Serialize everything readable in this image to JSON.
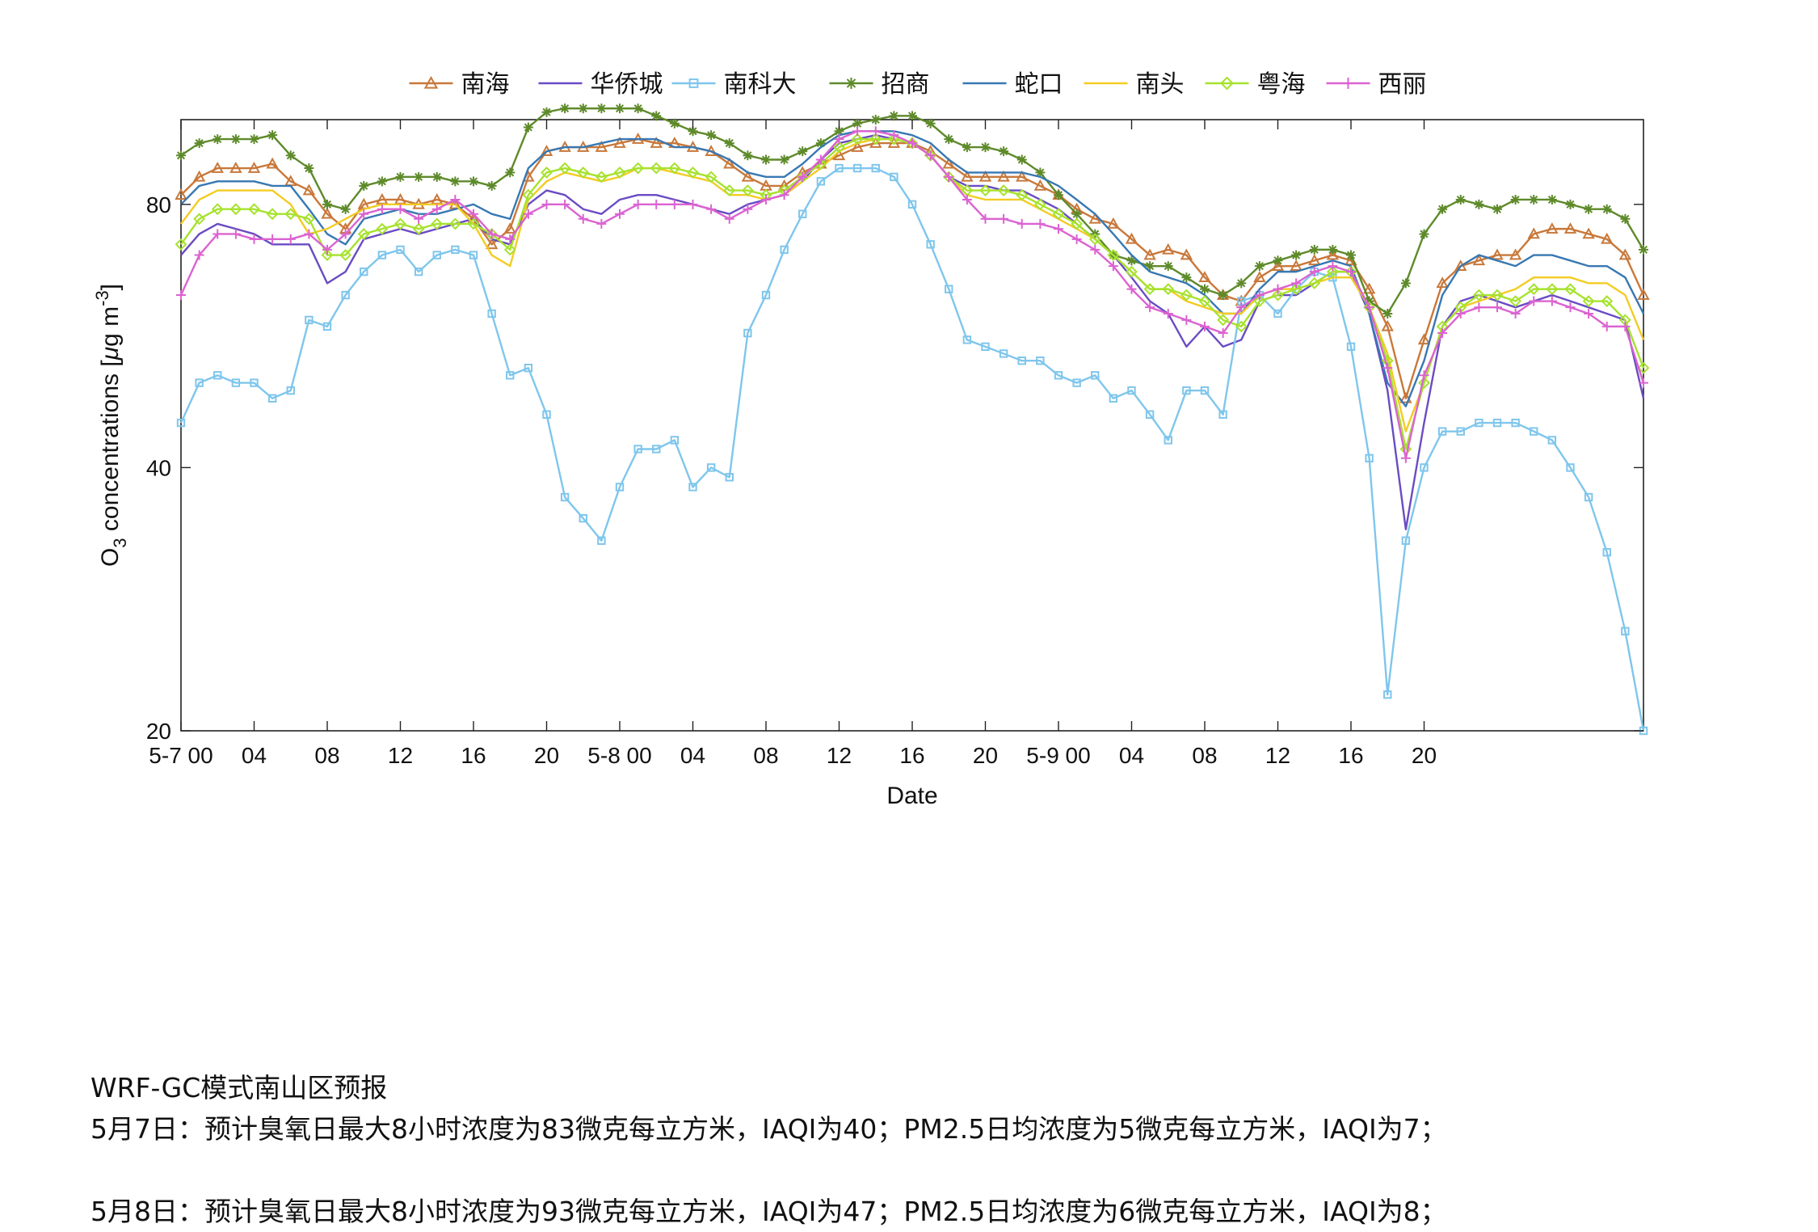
{
  "chart_data": {
    "type": "line",
    "xlabel": "Date",
    "ylabel": "O3 concentrations [μg m-3]",
    "ylabel_parts": {
      "o": "O",
      "sub": "3",
      "mid": " concentrations [",
      "mu": "μ",
      "g": "g m",
      "sup": "-3",
      "end": "]"
    },
    "y_scale": "log",
    "ylim": [
      20,
      100
    ],
    "yticks": [
      "20",
      "40",
      "80"
    ],
    "ytick_values": [
      20,
      40,
      80
    ],
    "xlim": [
      0,
      80
    ],
    "xticks": [
      {
        "x": 0,
        "label": "5-7 00"
      },
      {
        "x": 4,
        "label": "04"
      },
      {
        "x": 8,
        "label": "08"
      },
      {
        "x": 12,
        "label": "12"
      },
      {
        "x": 16,
        "label": "16"
      },
      {
        "x": 20,
        "label": "20"
      },
      {
        "x": 24,
        "label": "5-8 00"
      },
      {
        "x": 28,
        "label": "04"
      },
      {
        "x": 32,
        "label": "08"
      },
      {
        "x": 36,
        "label": "12"
      },
      {
        "x": 40,
        "label": "16"
      },
      {
        "x": 44,
        "label": "20"
      },
      {
        "x": 48,
        "label": "5-9 00"
      },
      {
        "x": 52,
        "label": "04"
      },
      {
        "x": 56,
        "label": "08"
      },
      {
        "x": 60,
        "label": "12"
      },
      {
        "x": 64,
        "label": "16"
      },
      {
        "x": 68,
        "label": "20"
      }
    ],
    "legend_position": "top-center",
    "grid": false,
    "series": [
      {
        "name": "南海",
        "color": "#c8783a",
        "marker": "triangle",
        "values": [
          82,
          86,
          88,
          88,
          88,
          89,
          85,
          83,
          78,
          75,
          80,
          81,
          81,
          80,
          81,
          80,
          77,
          72,
          75,
          86,
          92,
          93,
          93,
          93,
          94,
          95,
          94,
          94,
          93,
          92,
          89,
          86,
          84,
          84,
          87,
          89,
          91,
          93,
          94,
          94,
          94,
          92,
          89,
          86,
          86,
          86,
          86,
          84,
          82,
          79,
          77,
          76,
          73,
          70,
          71,
          70,
          66,
          63,
          62,
          66,
          68,
          68,
          69,
          70,
          69,
          64,
          58,
          48,
          56,
          65,
          68,
          69,
          70,
          70,
          74,
          75,
          75,
          74,
          73,
          70,
          63
        ]
      },
      {
        "name": "华侨城",
        "color": "#6a4cc2",
        "marker": "none",
        "values": [
          70,
          74,
          76,
          75,
          74,
          72,
          72,
          72,
          65,
          67,
          73,
          74,
          75,
          74,
          75,
          76,
          77,
          73,
          72,
          80,
          83,
          82,
          79,
          78,
          81,
          82,
          82,
          81,
          80,
          79,
          78,
          80,
          81,
          82,
          85,
          90,
          94,
          95,
          96,
          95,
          94,
          91,
          86,
          84,
          84,
          83,
          83,
          81,
          79,
          76,
          73,
          70,
          66,
          62,
          60,
          55,
          58,
          55,
          56,
          62,
          63,
          63,
          65,
          67,
          67,
          60,
          49,
          34,
          45,
          58,
          62,
          63,
          62,
          61,
          62,
          63,
          62,
          61,
          60,
          59,
          48
        ]
      },
      {
        "name": "南科大",
        "color": "#7fc6ec",
        "marker": "square",
        "values": [
          45,
          50,
          51,
          50,
          50,
          48,
          49,
          59,
          58,
          63,
          67,
          70,
          71,
          67,
          70,
          71,
          70,
          60,
          51,
          52,
          46,
          37,
          35,
          33,
          38,
          42,
          42,
          43,
          38,
          40,
          39,
          57,
          63,
          71,
          78,
          85,
          88,
          88,
          88,
          86,
          80,
          72,
          64,
          56,
          55,
          54,
          53,
          53,
          51,
          50,
          51,
          48,
          49,
          46,
          43,
          49,
          49,
          46,
          62,
          63,
          60,
          64,
          67,
          66,
          55,
          41,
          22,
          33,
          40,
          44,
          44,
          45,
          45,
          45,
          44,
          43,
          40,
          37,
          32,
          26,
          20
        ]
      },
      {
        "name": "招商",
        "color": "#5e8a2a",
        "marker": "asterisk",
        "values": [
          91,
          94,
          95,
          95,
          95,
          96,
          91,
          88,
          80,
          79,
          84,
          85,
          86,
          86,
          86,
          85,
          85,
          84,
          87,
          98,
          102,
          103,
          103,
          103,
          103,
          103,
          101,
          99,
          97,
          96,
          94,
          91,
          90,
          90,
          92,
          94,
          97,
          99,
          100,
          101,
          101,
          99,
          95,
          93,
          93,
          92,
          90,
          87,
          82,
          78,
          74,
          70,
          69,
          68,
          68,
          66,
          64,
          63,
          65,
          68,
          69,
          70,
          71,
          71,
          70,
          62,
          60,
          65,
          74,
          79,
          81,
          80,
          79,
          81,
          81,
          81,
          80,
          79,
          79,
          77,
          71
        ]
      },
      {
        "name": "蛇口",
        "color": "#3878b2",
        "marker": "none",
        "values": [
          80,
          84,
          85,
          85,
          85,
          84,
          84,
          79,
          74,
          72,
          77,
          78,
          79,
          78,
          78,
          79,
          80,
          78,
          77,
          88,
          92,
          93,
          93,
          94,
          95,
          95,
          95,
          93,
          93,
          92,
          90,
          87,
          86,
          86,
          89,
          93,
          96,
          97,
          97,
          97,
          96,
          94,
          90,
          87,
          87,
          87,
          87,
          86,
          84,
          81,
          78,
          74,
          70,
          67,
          66,
          65,
          63,
          60,
          60,
          64,
          67,
          67,
          68,
          69,
          68,
          60,
          50,
          47,
          53,
          63,
          68,
          70,
          69,
          68,
          70,
          70,
          69,
          68,
          68,
          66,
          60
        ]
      },
      {
        "name": "南头",
        "color": "#f3cc23",
        "marker": "none",
        "values": [
          76,
          81,
          83,
          83,
          83,
          83,
          80,
          74,
          75,
          77,
          79,
          80,
          80,
          80,
          80,
          80,
          76,
          70,
          68,
          81,
          85,
          87,
          86,
          85,
          86,
          88,
          88,
          87,
          86,
          85,
          82,
          82,
          81,
          82,
          85,
          88,
          92,
          94,
          95,
          95,
          94,
          91,
          86,
          82,
          81,
          81,
          81,
          79,
          77,
          75,
          73,
          70,
          67,
          64,
          64,
          62,
          61,
          60,
          60,
          63,
          64,
          64,
          65,
          66,
          66,
          61,
          54,
          44,
          50,
          58,
          61,
          62,
          63,
          64,
          66,
          66,
          66,
          65,
          65,
          63,
          56
        ]
      },
      {
        "name": "粤海",
        "color": "#a6e22e",
        "marker": "diamond",
        "values": [
          72,
          77,
          79,
          79,
          79,
          78,
          78,
          77,
          70,
          70,
          74,
          75,
          76,
          75,
          76,
          76,
          76,
          74,
          71,
          82,
          87,
          88,
          87,
          86,
          87,
          88,
          88,
          88,
          87,
          86,
          83,
          83,
          82,
          83,
          86,
          89,
          93,
          95,
          95,
          95,
          94,
          91,
          86,
          83,
          83,
          83,
          82,
          80,
          78,
          76,
          73,
          70,
          67,
          64,
          64,
          63,
          62,
          59,
          58,
          62,
          63,
          64,
          65,
          67,
          67,
          61,
          53,
          42,
          50,
          58,
          61,
          63,
          63,
          62,
          64,
          64,
          64,
          62,
          62,
          59,
          52
        ]
      },
      {
        "name": "西丽",
        "color": "#db63d1",
        "marker": "plus",
        "values": [
          63,
          70,
          74,
          74,
          73,
          73,
          73,
          74,
          71,
          74,
          78,
          79,
          79,
          77,
          79,
          81,
          78,
          74,
          73,
          78,
          80,
          80,
          77,
          76,
          78,
          80,
          80,
          80,
          80,
          79,
          77,
          79,
          81,
          82,
          86,
          90,
          95,
          97,
          97,
          96,
          94,
          91,
          86,
          81,
          77,
          77,
          76,
          76,
          75,
          73,
          71,
          68,
          64,
          61,
          60,
          59,
          58,
          57,
          61,
          63,
          64,
          65,
          67,
          68,
          67,
          61,
          52,
          41,
          51,
          57,
          60,
          61,
          61,
          60,
          62,
          62,
          61,
          60,
          58,
          58,
          50
        ]
      }
    ]
  },
  "report": {
    "title": "WRF-GC模式南山区预报",
    "line1": "5月7日：预计臭氧日最大8小时浓度为83微克每立方米，IAQI为40；PM2.5日均浓度为5微克每立方米，IAQI为7；",
    "line2": "5月8日：预计臭氧日最大8小时浓度为93微克每立方米，IAQI为47；PM2.5日均浓度为6微克每立方米，IAQI为8；"
  }
}
